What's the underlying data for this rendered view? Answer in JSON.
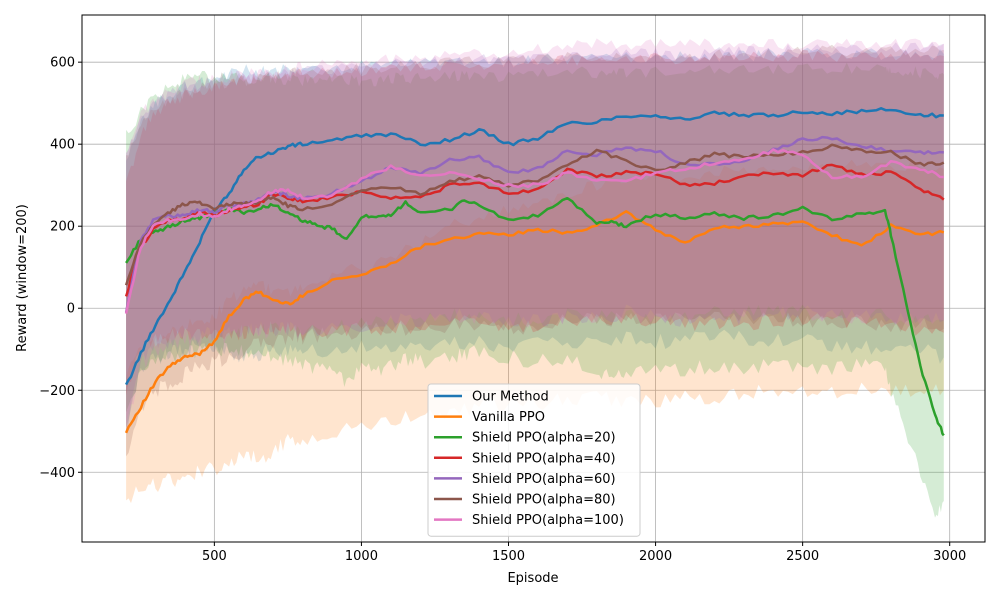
{
  "chart_data": {
    "type": "line",
    "title": "",
    "xlabel": "Episode",
    "ylabel": "Reward (window=200)",
    "xlim": [
      50,
      3120
    ],
    "ylim": [
      -570,
      715
    ],
    "xticks": [
      500,
      1000,
      1500,
      2000,
      2500,
      3000
    ],
    "yticks": [
      -400,
      -200,
      0,
      200,
      400,
      600
    ],
    "xtick_labels": [
      "500",
      "1000",
      "1500",
      "2000",
      "2500",
      "3000"
    ],
    "ytick_labels": [
      "−400",
      "−200",
      "0",
      "200",
      "400",
      "600"
    ],
    "grid": true,
    "legend_position": "lower-center",
    "band": "shaded variability band around each series",
    "series": [
      {
        "name": "Our Method",
        "color": "#1f77b4",
        "x": [
          200,
          250,
          300,
          350,
          400,
          450,
          500,
          550,
          600,
          650,
          700,
          750,
          800,
          900,
          1000,
          1100,
          1200,
          1300,
          1400,
          1500,
          1600,
          1700,
          1800,
          1900,
          2000,
          2100,
          2200,
          2300,
          2400,
          2500,
          2600,
          2700,
          2800,
          2900,
          2980
        ],
        "y": [
          -190,
          -110,
          -40,
          20,
          90,
          160,
          240,
          280,
          340,
          370,
          380,
          395,
          400,
          410,
          420,
          425,
          400,
          410,
          435,
          400,
          415,
          450,
          455,
          470,
          470,
          460,
          475,
          470,
          470,
          480,
          475,
          480,
          485,
          470,
          470
        ],
        "band_low": [
          -300,
          -150,
          -120,
          -110,
          -100,
          -90,
          -100,
          -110,
          -120,
          -110,
          -100,
          -110,
          -100,
          -100,
          -90,
          -100,
          -90,
          -90,
          -80,
          -100,
          -90,
          -80,
          -80,
          -70,
          -80,
          -80,
          -70,
          -70,
          -80,
          -80,
          -90,
          -100,
          -90,
          -100,
          -120
        ],
        "band_high": [
          350,
          450,
          500,
          520,
          540,
          550,
          560,
          570,
          580,
          580,
          580,
          580,
          580,
          585,
          590,
          595,
          595,
          600,
          600,
          600,
          605,
          610,
          610,
          610,
          615,
          615,
          615,
          615,
          620,
          620,
          620,
          620,
          620,
          620,
          620
        ]
      },
      {
        "name": "Vanilla PPO",
        "color": "#ff7f0e",
        "x": [
          200,
          250,
          300,
          350,
          400,
          450,
          500,
          550,
          600,
          650,
          700,
          750,
          800,
          900,
          1000,
          1100,
          1200,
          1300,
          1400,
          1500,
          1600,
          1700,
          1800,
          1900,
          2000,
          2100,
          2200,
          2300,
          2400,
          2500,
          2600,
          2700,
          2800,
          2900,
          2980
        ],
        "y": [
          -300,
          -240,
          -180,
          -140,
          -120,
          -110,
          -80,
          -20,
          20,
          40,
          20,
          10,
          30,
          70,
          80,
          110,
          150,
          170,
          180,
          180,
          190,
          185,
          200,
          235,
          190,
          160,
          195,
          200,
          205,
          210,
          180,
          150,
          200,
          180,
          185
        ],
        "band_low": [
          -460,
          -450,
          -430,
          -420,
          -410,
          -400,
          -390,
          -380,
          -360,
          -370,
          -350,
          -320,
          -320,
          -300,
          -290,
          -280,
          -260,
          -250,
          -240,
          -230,
          -240,
          -220,
          -220,
          -230,
          -230,
          -220,
          -220,
          -210,
          -200,
          -200,
          -210,
          -200,
          -200,
          -210,
          -200
        ],
        "band_high": [
          -160,
          -100,
          -80,
          -60,
          -40,
          -40,
          -20,
          20,
          40,
          60,
          40,
          40,
          50,
          80,
          100,
          120,
          160,
          200,
          220,
          240,
          260,
          280,
          300,
          320,
          320,
          320,
          330,
          340,
          340,
          350,
          350,
          350,
          350,
          340,
          340
        ]
      },
      {
        "name": "Shield PPO(alpha=20)",
        "color": "#2ca02c",
        "x": [
          200,
          250,
          300,
          350,
          400,
          450,
          500,
          550,
          600,
          650,
          700,
          750,
          800,
          850,
          900,
          950,
          1000,
          1050,
          1100,
          1150,
          1200,
          1300,
          1350,
          1400,
          1500,
          1600,
          1700,
          1800,
          1850,
          1900,
          2000,
          2100,
          2200,
          2300,
          2400,
          2500,
          2600,
          2700,
          2780,
          2800,
          2850,
          2900,
          2950,
          2980
        ],
        "y": [
          110,
          170,
          185,
          200,
          215,
          220,
          230,
          240,
          235,
          240,
          255,
          230,
          215,
          200,
          195,
          165,
          225,
          220,
          225,
          260,
          230,
          240,
          265,
          250,
          215,
          225,
          270,
          205,
          210,
          200,
          230,
          220,
          230,
          220,
          225,
          245,
          215,
          230,
          240,
          180,
          20,
          -140,
          -260,
          -310
        ],
        "band_low": [
          -250,
          -150,
          -130,
          -120,
          -110,
          -100,
          -100,
          -100,
          -110,
          -120,
          -120,
          -130,
          -140,
          -150,
          -150,
          -180,
          -150,
          -150,
          -140,
          -120,
          -130,
          -120,
          -110,
          -110,
          -120,
          -130,
          -130,
          -150,
          -160,
          -170,
          -140,
          -150,
          -140,
          -150,
          -140,
          -140,
          -150,
          -140,
          -140,
          -200,
          -300,
          -400,
          -500,
          -470
        ],
        "band_high": [
          420,
          480,
          520,
          540,
          560,
          570,
          560,
          560,
          560,
          560,
          560,
          555,
          555,
          555,
          555,
          555,
          555,
          555,
          560,
          560,
          560,
          565,
          565,
          565,
          565,
          570,
          575,
          575,
          575,
          575,
          575,
          580,
          580,
          580,
          580,
          585,
          585,
          585,
          585,
          585,
          580,
          575,
          570,
          570
        ]
      },
      {
        "name": "Shield PPO(alpha=40)",
        "color": "#d62728",
        "x": [
          200,
          250,
          300,
          350,
          400,
          450,
          500,
          550,
          600,
          650,
          700,
          750,
          800,
          900,
          1000,
          1100,
          1200,
          1300,
          1400,
          1500,
          1600,
          1700,
          1800,
          1900,
          2000,
          2100,
          2200,
          2300,
          2400,
          2500,
          2600,
          2700,
          2800,
          2900,
          2980
        ],
        "y": [
          30,
          150,
          200,
          215,
          220,
          235,
          225,
          240,
          245,
          255,
          280,
          270,
          260,
          270,
          285,
          270,
          270,
          300,
          305,
          280,
          290,
          340,
          320,
          330,
          330,
          300,
          305,
          320,
          330,
          325,
          350,
          325,
          330,
          290,
          265
        ],
        "band_low": [
          -200,
          -100,
          -80,
          -70,
          -60,
          -60,
          -50,
          -60,
          -60,
          -50,
          -50,
          -50,
          -60,
          -50,
          -50,
          -50,
          -40,
          -40,
          -30,
          -40,
          -40,
          -30,
          -30,
          -30,
          -30,
          -40,
          -40,
          -40,
          -30,
          -30,
          -30,
          -40,
          -40,
          -50,
          -60
        ],
        "band_high": [
          300,
          420,
          480,
          500,
          520,
          530,
          540,
          550,
          555,
          560,
          560,
          565,
          570,
          575,
          580,
          585,
          590,
          590,
          595,
          600,
          600,
          605,
          605,
          610,
          610,
          610,
          610,
          612,
          612,
          615,
          615,
          615,
          615,
          615,
          615
        ]
      },
      {
        "name": "Shield PPO(alpha=60)",
        "color": "#9467bd",
        "x": [
          200,
          250,
          300,
          350,
          400,
          450,
          500,
          550,
          600,
          650,
          700,
          750,
          800,
          900,
          1000,
          1100,
          1200,
          1300,
          1400,
          1500,
          1600,
          1700,
          1800,
          1900,
          2000,
          2100,
          2200,
          2300,
          2400,
          2500,
          2600,
          2700,
          2800,
          2900,
          2980
        ],
        "y": [
          -10,
          170,
          220,
          225,
          230,
          240,
          235,
          250,
          255,
          265,
          285,
          275,
          265,
          280,
          310,
          345,
          330,
          360,
          370,
          330,
          340,
          385,
          375,
          390,
          385,
          350,
          350,
          360,
          385,
          410,
          415,
          395,
          385,
          380,
          380
        ],
        "band_low": [
          -300,
          -120,
          -90,
          -80,
          -70,
          -70,
          -60,
          -60,
          -60,
          -50,
          -50,
          -50,
          -60,
          -40,
          -40,
          -30,
          -30,
          -20,
          -20,
          -30,
          -30,
          -20,
          -20,
          -10,
          -20,
          -30,
          -30,
          -20,
          -10,
          -10,
          -10,
          -20,
          -20,
          -30,
          -30
        ],
        "band_high": [
          380,
          460,
          500,
          520,
          540,
          545,
          550,
          555,
          560,
          565,
          570,
          575,
          580,
          585,
          590,
          595,
          600,
          605,
          610,
          610,
          612,
          615,
          618,
          620,
          620,
          622,
          622,
          625,
          628,
          630,
          632,
          632,
          635,
          640,
          645
        ]
      },
      {
        "name": "Shield PPO(alpha=80)",
        "color": "#8c564b",
        "x": [
          200,
          250,
          300,
          350,
          400,
          450,
          500,
          550,
          600,
          650,
          700,
          750,
          800,
          900,
          1000,
          1100,
          1200,
          1300,
          1400,
          1500,
          1600,
          1700,
          1800,
          1900,
          2000,
          2100,
          2200,
          2300,
          2400,
          2500,
          2600,
          2700,
          2800,
          2900,
          2980
        ],
        "y": [
          55,
          160,
          210,
          235,
          255,
          260,
          240,
          255,
          255,
          260,
          270,
          250,
          240,
          255,
          290,
          295,
          280,
          310,
          320,
          300,
          310,
          350,
          385,
          360,
          335,
          355,
          375,
          370,
          375,
          380,
          395,
          385,
          380,
          350,
          355
        ],
        "band_low": [
          -380,
          -250,
          -200,
          -180,
          -160,
          -140,
          -130,
          -120,
          -100,
          -80,
          -80,
          -70,
          -70,
          -60,
          -60,
          -50,
          -50,
          -40,
          -40,
          -50,
          -40,
          -30,
          -20,
          -30,
          -30,
          -30,
          -20,
          -20,
          -20,
          -30,
          -30,
          -30,
          -40,
          -40,
          -50
        ],
        "band_high": [
          360,
          450,
          490,
          510,
          525,
          535,
          545,
          550,
          555,
          560,
          565,
          570,
          575,
          580,
          585,
          590,
          595,
          600,
          600,
          600,
          605,
          610,
          612,
          614,
          615,
          615,
          618,
          620,
          622,
          625,
          628,
          630,
          630,
          630,
          630
        ]
      },
      {
        "name": "Shield PPO(alpha=100)",
        "color": "#e377c2",
        "x": [
          200,
          250,
          300,
          350,
          400,
          450,
          500,
          550,
          600,
          650,
          700,
          750,
          800,
          900,
          1000,
          1100,
          1200,
          1300,
          1400,
          1500,
          1600,
          1700,
          1800,
          1900,
          2000,
          2100,
          2200,
          2300,
          2400,
          2500,
          2600,
          2700,
          2800,
          2900,
          2980
        ],
        "y": [
          -10,
          150,
          210,
          215,
          220,
          230,
          220,
          240,
          250,
          265,
          285,
          290,
          270,
          275,
          315,
          345,
          320,
          330,
          315,
          300,
          300,
          330,
          310,
          310,
          330,
          340,
          355,
          360,
          385,
          375,
          320,
          320,
          355,
          340,
          320
        ],
        "band_low": [
          -300,
          -140,
          -100,
          -90,
          -80,
          -80,
          -70,
          -70,
          -60,
          -60,
          -50,
          -50,
          -60,
          -50,
          -40,
          -30,
          -30,
          -20,
          -20,
          -30,
          -30,
          -20,
          -20,
          -20,
          -20,
          -20,
          -10,
          -10,
          -10,
          -10,
          -20,
          -20,
          -20,
          -30,
          -30
        ],
        "band_high": [
          380,
          470,
          510,
          530,
          545,
          555,
          560,
          565,
          570,
          575,
          580,
          585,
          590,
          595,
          600,
          605,
          610,
          615,
          620,
          625,
          630,
          640,
          645,
          645,
          645,
          645,
          645,
          645,
          645,
          645,
          645,
          645,
          645,
          645,
          645
        ]
      }
    ]
  }
}
